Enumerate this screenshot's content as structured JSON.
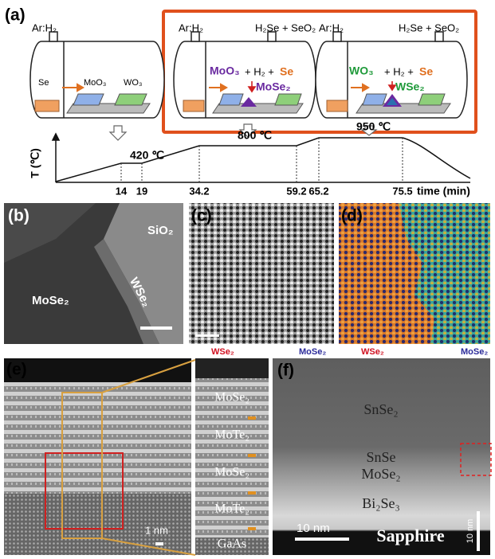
{
  "panels": {
    "a": {
      "label": "(a)",
      "gas_in": [
        "Ar:H₂",
        "Ar:H₂",
        "Ar:H₂"
      ],
      "gas_out": [
        "H₂Se + SeO₂",
        "H₂Se + SeO₂"
      ],
      "left_tube": {
        "se": "Se",
        "moo3": "MoO₃",
        "wo3": "WO₃"
      },
      "middle_tube": {
        "reactant": "MoO₃",
        "plus": "+ H₂ +",
        "se": "Se",
        "product": "MoSe₂"
      },
      "right_tube": {
        "reactant": "WO₃",
        "plus": "+ H₂ +",
        "se": "Se",
        "product": "WSe₂"
      },
      "profile": {
        "y_label": "T (℃)",
        "x_label": "time (min)",
        "times": [
          14,
          19,
          34.2,
          59.2,
          65.2,
          75.5
        ],
        "temps": [
          "420 ℃",
          "800 ℃",
          "950 ℃"
        ]
      }
    },
    "b": {
      "label": "(b)",
      "sio2": "SiO₂",
      "wse2": "WSe₂",
      "mose2": "MoSe₂"
    },
    "c": {
      "label": "(c)",
      "left": "WSe₂",
      "right": "MoSe₂"
    },
    "d": {
      "label": "(d)",
      "left": "WSe₂",
      "right": "MoSe₂"
    },
    "e": {
      "label": "(e)",
      "scale": "1 nm",
      "layers": [
        "MoSe₂",
        "MoTe₂",
        "MoSe₂",
        "MoTe₂",
        "GaAs"
      ]
    },
    "f": {
      "label": "(f)",
      "layers": [
        "SnSe₂",
        "SnSe",
        "MoSe₂",
        "Bi₂Se₃",
        "Sapphire"
      ],
      "scale": "10 nm",
      "scale_v": "10 nm"
    }
  }
}
